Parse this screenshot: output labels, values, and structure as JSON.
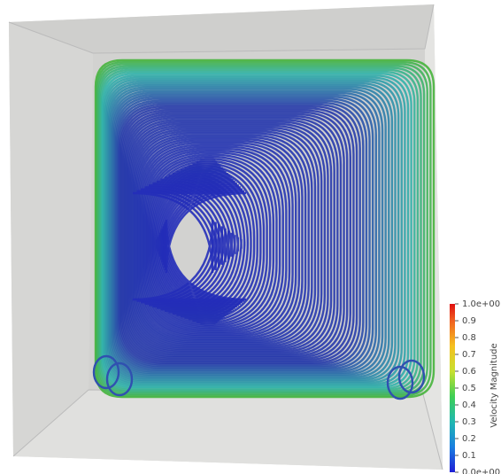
{
  "colorbar": {
    "title": "Velocity Magnitude",
    "ticks": [
      "1.0e+00",
      "0.9",
      "0.8",
      "0.7",
      "0.6",
      "0.5",
      "0.4",
      "0.3",
      "0.2",
      "0.1",
      "0.0e+00"
    ]
  }
}
